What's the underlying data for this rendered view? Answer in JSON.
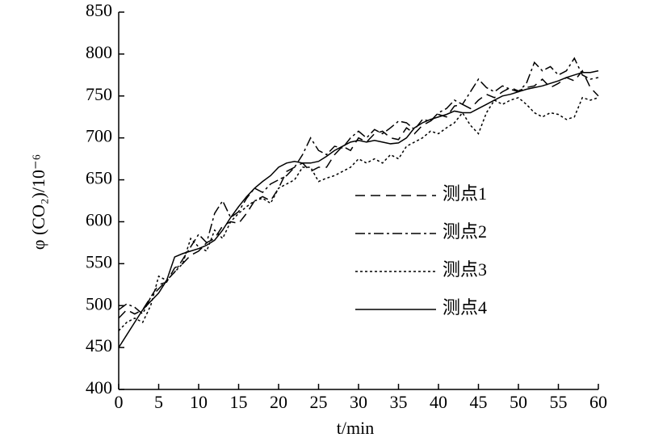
{
  "chart_data": {
    "type": "line",
    "xlabel": "t/min",
    "ylabel": "φ (CO₂)/10⁻⁶",
    "x": [
      0,
      1,
      2,
      3,
      4,
      5,
      6,
      7,
      8,
      9,
      10,
      11,
      12,
      13,
      14,
      15,
      16,
      17,
      18,
      19,
      20,
      21,
      22,
      23,
      24,
      25,
      26,
      27,
      28,
      29,
      30,
      31,
      32,
      33,
      34,
      35,
      36,
      37,
      38,
      39,
      40,
      41,
      42,
      43,
      44,
      45,
      46,
      47,
      48,
      49,
      50,
      51,
      52,
      53,
      54,
      55,
      56,
      57,
      58,
      59,
      60
    ],
    "xlim": [
      0,
      60
    ],
    "xticks": [
      0,
      5,
      10,
      15,
      20,
      25,
      30,
      35,
      40,
      45,
      50,
      55,
      60
    ],
    "ylim": [
      400,
      850
    ],
    "yticks": [
      400,
      450,
      500,
      550,
      600,
      650,
      700,
      750,
      800,
      850
    ],
    "grid": false,
    "legend": "right",
    "series": [
      {
        "name": "测点1",
        "color": "#000000",
        "dash": "12,7",
        "values": [
          485,
          495,
          490,
          495,
          510,
          525,
          528,
          545,
          550,
          560,
          565,
          575,
          580,
          595,
          600,
          598,
          610,
          625,
          630,
          625,
          640,
          660,
          665,
          670,
          660,
          665,
          665,
          680,
          690,
          685,
          700,
          695,
          705,
          708,
          700,
          698,
          712,
          705,
          715,
          720,
          728,
          725,
          738,
          740,
          735,
          745,
          752,
          748,
          755,
          760,
          756,
          760,
          762,
          770,
          760,
          765,
          772,
          768,
          780,
          760,
          750
        ]
      },
      {
        "name": "测点2",
        "color": "#000000",
        "dash": "12,4,3,4",
        "values": [
          495,
          502,
          498,
          490,
          510,
          520,
          530,
          540,
          555,
          570,
          585,
          575,
          610,
          625,
          605,
          612,
          628,
          640,
          635,
          645,
          650,
          655,
          665,
          680,
          700,
          685,
          680,
          690,
          688,
          700,
          708,
          700,
          710,
          705,
          712,
          720,
          718,
          710,
          722,
          720,
          730,
          735,
          745,
          740,
          755,
          770,
          760,
          755,
          762,
          758,
          755,
          765,
          790,
          780,
          785,
          775,
          780,
          795,
          775,
          770,
          772
        ]
      },
      {
        "name": "测点3",
        "color": "#000000",
        "dash": "3,3",
        "values": [
          470,
          480,
          485,
          480,
          500,
          535,
          530,
          540,
          550,
          580,
          570,
          565,
          590,
          580,
          600,
          610,
          618,
          625,
          628,
          622,
          640,
          645,
          650,
          665,
          665,
          648,
          652,
          655,
          660,
          665,
          675,
          670,
          675,
          670,
          680,
          675,
          690,
          695,
          700,
          708,
          705,
          712,
          718,
          730,
          715,
          705,
          730,
          745,
          740,
          745,
          748,
          740,
          730,
          725,
          730,
          728,
          722,
          725,
          748,
          745,
          748
        ]
      },
      {
        "name": "测点4",
        "color": "#000000",
        "dash": "none",
        "values": [
          450,
          465,
          480,
          495,
          505,
          515,
          530,
          558,
          562,
          565,
          568,
          572,
          578,
          590,
          605,
          618,
          630,
          640,
          648,
          655,
          665,
          670,
          672,
          670,
          670,
          672,
          678,
          685,
          690,
          695,
          697,
          695,
          697,
          695,
          693,
          694,
          700,
          712,
          718,
          722,
          725,
          728,
          732,
          730,
          730,
          735,
          740,
          745,
          750,
          752,
          755,
          758,
          760,
          762,
          765,
          768,
          772,
          775,
          778,
          778,
          780
        ]
      }
    ]
  }
}
